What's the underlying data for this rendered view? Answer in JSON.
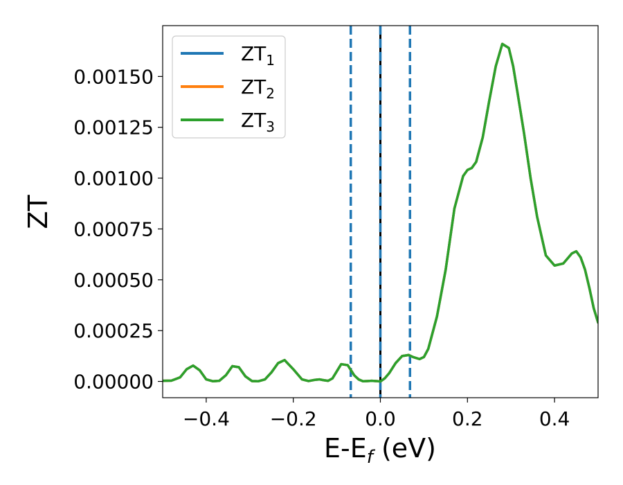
{
  "chart_data": {
    "type": "line",
    "xlabel": "E-E",
    "xlabel_sub": "f",
    "xlabel_unit": " (eV)",
    "ylabel": "ZT",
    "xlim": [
      -0.5,
      0.5
    ],
    "ylim": [
      -8e-05,
      0.00175
    ],
    "xticks": [
      -0.4,
      -0.2,
      0.0,
      0.2,
      0.4
    ],
    "xtick_labels": [
      "−0.4",
      "−0.2",
      "0.0",
      "0.2",
      "0.4"
    ],
    "yticks": [
      0,
      0.00025,
      0.0005,
      0.00075,
      0.001,
      0.00125,
      0.0015
    ],
    "ytick_labels": [
      "0.00000",
      "0.00025",
      "0.00050",
      "0.00075",
      "0.00100",
      "0.00125",
      "0.00150"
    ],
    "grid": false,
    "legend_position": "top-left",
    "vlines": [
      {
        "x": -0.068,
        "style": "dashed",
        "color": "#1f77b4"
      },
      {
        "x": 0.0,
        "style": "solid",
        "color": "#000000"
      },
      {
        "x": 0.0,
        "style": "dashed",
        "color": "#1f77b4"
      },
      {
        "x": 0.068,
        "style": "dashed",
        "color": "#1f77b4"
      }
    ],
    "x": [
      -0.5,
      -0.48,
      -0.46,
      -0.445,
      -0.43,
      -0.415,
      -0.4,
      -0.385,
      -0.37,
      -0.355,
      -0.34,
      -0.325,
      -0.31,
      -0.295,
      -0.28,
      -0.265,
      -0.25,
      -0.235,
      -0.22,
      -0.2,
      -0.18,
      -0.165,
      -0.15,
      -0.14,
      -0.13,
      -0.12,
      -0.11,
      -0.1,
      -0.09,
      -0.075,
      -0.06,
      -0.05,
      -0.04,
      -0.03,
      -0.02,
      -0.01,
      0.0,
      0.01,
      0.02,
      0.035,
      0.05,
      0.065,
      0.075,
      0.09,
      0.1,
      0.11,
      0.13,
      0.15,
      0.17,
      0.19,
      0.2,
      0.21,
      0.22,
      0.235,
      0.25,
      0.265,
      0.28,
      0.295,
      0.305,
      0.315,
      0.33,
      0.345,
      0.36,
      0.38,
      0.4,
      0.42,
      0.44,
      0.45,
      0.46,
      0.47,
      0.48,
      0.49,
      0.5
    ],
    "series": [
      {
        "name": "ZT",
        "name_sub": "1",
        "color": "#1f77b4",
        "values": [
          3e-06,
          4e-06,
          2e-05,
          6e-05,
          7.8e-05,
          5.5e-05,
          1e-05,
          1e-06,
          3e-06,
          3e-05,
          7.5e-05,
          7e-05,
          2.5e-05,
          2e-06,
          1e-06,
          1e-05,
          4.5e-05,
          9e-05,
          0.000105,
          6e-05,
          1e-05,
          2e-06,
          8e-06,
          1e-05,
          6e-06,
          3e-06,
          1.5e-05,
          5e-05,
          8.5e-05,
          8e-05,
          3e-05,
          1e-05,
          1e-06,
          2e-06,
          3e-06,
          2e-06,
          0.0,
          1.5e-05,
          4e-05,
          9e-05,
          0.000125,
          0.00013,
          0.00012,
          0.00011,
          0.00012,
          0.00016,
          0.00032,
          0.00055,
          0.00085,
          0.00101,
          0.00104,
          0.00105,
          0.00108,
          0.0012,
          0.00138,
          0.00155,
          0.00166,
          0.00164,
          0.00155,
          0.00142,
          0.00122,
          0.001,
          0.00081,
          0.00062,
          0.00057,
          0.00058,
          0.00063,
          0.00064,
          0.00061,
          0.00055,
          0.00046,
          0.00036,
          0.00029
        ]
      },
      {
        "name": "ZT",
        "name_sub": "2",
        "color": "#ff7f0e",
        "values": [
          3e-06,
          4e-06,
          2e-05,
          6e-05,
          7.8e-05,
          5.5e-05,
          1e-05,
          1e-06,
          3e-06,
          3e-05,
          7.5e-05,
          7e-05,
          2.5e-05,
          2e-06,
          1e-06,
          1e-05,
          4.5e-05,
          9e-05,
          0.000105,
          6e-05,
          1e-05,
          2e-06,
          8e-06,
          1e-05,
          6e-06,
          3e-06,
          1.5e-05,
          5e-05,
          8.5e-05,
          8e-05,
          3e-05,
          1e-05,
          1e-06,
          2e-06,
          3e-06,
          2e-06,
          0.0,
          1.5e-05,
          4e-05,
          9e-05,
          0.000125,
          0.00013,
          0.00012,
          0.00011,
          0.00012,
          0.00016,
          0.00032,
          0.00055,
          0.00085,
          0.00101,
          0.00104,
          0.00105,
          0.00108,
          0.0012,
          0.00138,
          0.00155,
          0.00166,
          0.00164,
          0.00155,
          0.00142,
          0.00122,
          0.001,
          0.00081,
          0.00062,
          0.00057,
          0.00058,
          0.00063,
          0.00064,
          0.00061,
          0.00055,
          0.00046,
          0.00036,
          0.00029
        ]
      },
      {
        "name": "ZT",
        "name_sub": "3",
        "color": "#2ca02c",
        "values": [
          3e-06,
          4e-06,
          2e-05,
          6e-05,
          7.8e-05,
          5.5e-05,
          1e-05,
          1e-06,
          3e-06,
          3e-05,
          7.5e-05,
          7e-05,
          2.5e-05,
          2e-06,
          1e-06,
          1e-05,
          4.5e-05,
          9e-05,
          0.000105,
          6e-05,
          1e-05,
          2e-06,
          8e-06,
          1e-05,
          6e-06,
          3e-06,
          1.5e-05,
          5e-05,
          8.5e-05,
          8e-05,
          3e-05,
          1e-05,
          1e-06,
          2e-06,
          3e-06,
          2e-06,
          0.0,
          1.5e-05,
          4e-05,
          9e-05,
          0.000125,
          0.00013,
          0.00012,
          0.00011,
          0.00012,
          0.00016,
          0.00032,
          0.00055,
          0.00085,
          0.00101,
          0.00104,
          0.00105,
          0.00108,
          0.0012,
          0.00138,
          0.00155,
          0.00166,
          0.00164,
          0.00155,
          0.00142,
          0.00122,
          0.001,
          0.00081,
          0.00062,
          0.00057,
          0.00058,
          0.00063,
          0.00064,
          0.00061,
          0.00055,
          0.00046,
          0.00036,
          0.00029
        ]
      }
    ]
  }
}
